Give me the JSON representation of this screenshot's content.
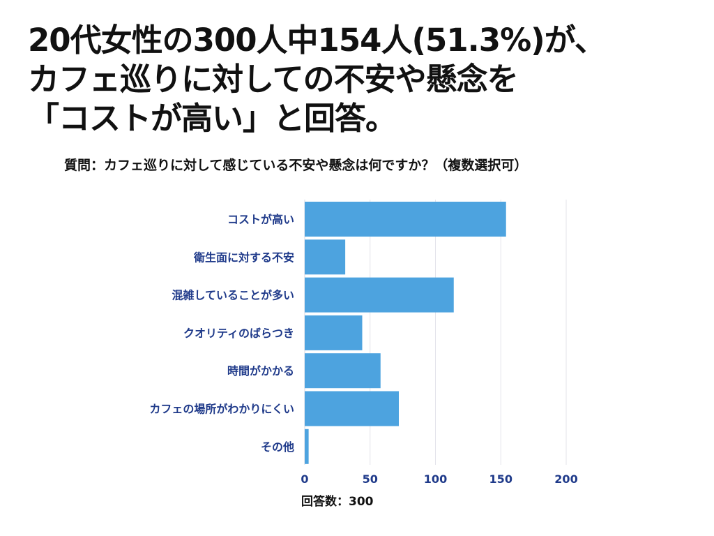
{
  "title_lines": [
    "20代女性の300人中154人(51.3%)が、",
    "カフェ巡りに対しての不安や懸念を",
    "「コストが高い」と回答。"
  ],
  "question": "質問：カフェ巡りに対して感じている不安や懸念は何ですか？（複数選択可）",
  "footer": "回答数：300",
  "colors": {
    "bar": "#4da3df",
    "label": "#1f3a8a",
    "grid": "#e3e3ea"
  },
  "chart_data": {
    "type": "bar",
    "orientation": "horizontal",
    "categories": [
      "コストが高い",
      "衛生面に対する不安",
      "混雑していることが多い",
      "クオリティのばらつき",
      "時間がかかる",
      "カフェの場所がわかりにくい",
      "その他"
    ],
    "values": [
      154,
      31,
      114,
      44,
      58,
      72,
      3
    ],
    "xlim": [
      0,
      200
    ],
    "xticks": [
      0,
      50,
      100,
      150,
      200
    ],
    "grid": true,
    "legend": "none"
  }
}
